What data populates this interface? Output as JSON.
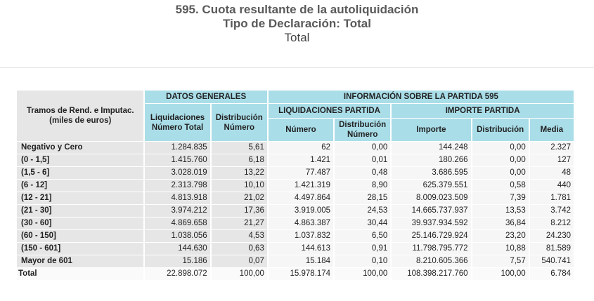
{
  "titles": {
    "line1": "595. Cuota resultante de la autoliquidación",
    "line2": "Tipo de Declaración: Total",
    "line3": "Total"
  },
  "headers": {
    "tramos_line1": "Tramos de Rend. e Imputac.",
    "tramos_line2": "(miles de euros)",
    "datos_generales": "DATOS GENERALES",
    "info_partida": "INFORMACIÓN SOBRE LA PARTIDA 595",
    "liq_num_total_1": "Liquidaciones",
    "liq_num_total_2": "Número Total",
    "dist_num_1": "Distribución",
    "dist_num_2": "Número",
    "liq_partida": "LIQUIDACIONES PARTIDA",
    "importe_partida": "IMPORTE PARTIDA",
    "numero": "Número",
    "dist_numero_1": "Distribución",
    "dist_numero_2": "Número",
    "importe": "Importe",
    "distribucion": "Distribución",
    "media": "Media"
  },
  "rows": [
    {
      "label": "Negativo y Cero",
      "c": [
        "1.284.835",
        "5,61",
        "62",
        "0,00",
        "144.248",
        "0,00",
        "2.327"
      ]
    },
    {
      "label": "(0 - 1,5]",
      "c": [
        "1.415.760",
        "6,18",
        "1.421",
        "0,01",
        "180.266",
        "0,00",
        "127"
      ]
    },
    {
      "label": "(1,5 - 6]",
      "c": [
        "3.028.019",
        "13,22",
        "77.487",
        "0,48",
        "3.686.595",
        "0,00",
        "48"
      ]
    },
    {
      "label": "(6 - 12]",
      "c": [
        "2.313.798",
        "10,10",
        "1.421.319",
        "8,90",
        "625.379.551",
        "0,58",
        "440"
      ]
    },
    {
      "label": "(12 - 21]",
      "c": [
        "4.813.918",
        "21,02",
        "4.497.864",
        "28,15",
        "8.009.023.509",
        "7,39",
        "1.781"
      ]
    },
    {
      "label": "(21 - 30]",
      "c": [
        "3.974.212",
        "17,36",
        "3.919.005",
        "24,53",
        "14.665.737.937",
        "13,53",
        "3.742"
      ]
    },
    {
      "label": "(30 - 60]",
      "c": [
        "4.869.658",
        "21,27",
        "4.863.387",
        "30,44",
        "39.937.934.592",
        "36,84",
        "8.212"
      ]
    },
    {
      "label": "(60 - 150]",
      "c": [
        "1.038.056",
        "4,53",
        "1.037.832",
        "6,50",
        "25.146.729.924",
        "23,20",
        "24.230"
      ]
    },
    {
      "label": "(150 - 601]",
      "c": [
        "144.630",
        "0,63",
        "144.613",
        "0,91",
        "11.798.795.772",
        "10,88",
        "81.589"
      ]
    },
    {
      "label": "Mayor de 601",
      "c": [
        "15.186",
        "0,07",
        "15.184",
        "0,10",
        "8.210.605.366",
        "7,57",
        "540.741"
      ]
    }
  ],
  "total": {
    "label": "Total",
    "c": [
      "22.898.072",
      "100,00",
      "15.978.174",
      "100,00",
      "108.398.217.760",
      "100,00",
      "6.784"
    ]
  }
}
